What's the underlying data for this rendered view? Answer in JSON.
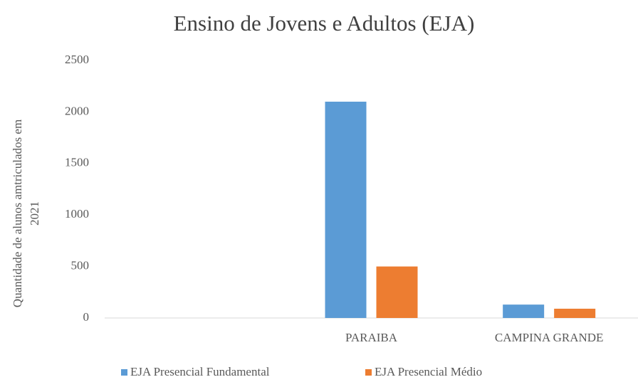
{
  "chart_data": {
    "type": "bar",
    "title": "Ensino de Jovens e  Adultos (EJA)",
    "y_label": [
      "Quantidade de alunos amtriculados em",
      "2021"
    ],
    "categories": [
      null,
      "PARAIBA",
      "CAMPINA GRANDE"
    ],
    "series": [
      {
        "name": "EJA Presencial Fundamental",
        "color": "#5b9bd5",
        "values": [
          null,
          2100,
          130
        ]
      },
      {
        "name": "EJA Presencial Médio",
        "color": "#ed7d31",
        "values": [
          null,
          500,
          90
        ]
      }
    ],
    "ylim": [
      0,
      2500
    ],
    "yticks": [
      0,
      500,
      1000,
      1500,
      2000,
      2500
    ],
    "grid": false,
    "legend": "bottom"
  }
}
